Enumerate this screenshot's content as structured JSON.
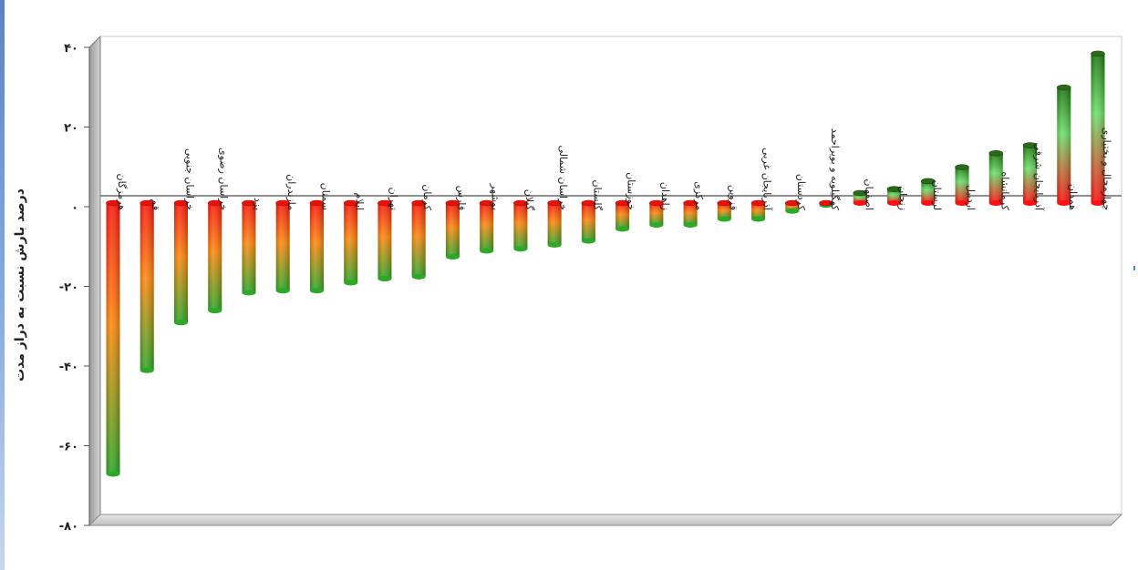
{
  "chart_data": {
    "type": "bar",
    "ylabel": "درصد بارش نسبت به دراز مدت",
    "ylim": [
      -80,
      40
    ],
    "yticks": [
      40,
      20,
      0,
      -20,
      -40,
      -60,
      -80
    ],
    "ytick_labels": [
      "۴۰",
      "۲۰",
      "۰",
      "-۲۰",
      "-۴۰",
      "-۶۰",
      "-۸۰"
    ],
    "grid": false,
    "legend": "none",
    "categories": [
      "هرمزگان",
      "قم",
      "خراسان جنوبی",
      "خراسان رضوی",
      "یزد",
      "مازندران",
      "سمنان",
      "ایلام",
      "تهران",
      "کرمان",
      "فارس",
      "بوشهر",
      "گیلان",
      "خراسان شمالی",
      "گلستان",
      "خوزستان",
      "زاهدان",
      "مرکزی",
      "قزوین",
      "آذربایجان غربی",
      "کردستان",
      "کهگیلویه و بویراحمد",
      "اصفهان",
      "زنجان",
      "لرستان",
      "اردبیل",
      "کرمانشاه",
      "آذربایجان شرقی",
      "همدان",
      "چهارمحال و بختیاری"
    ],
    "values": [
      -68,
      -42,
      -30,
      -27,
      -22.5,
      -22,
      -22,
      -20,
      -19,
      -18.5,
      -13.5,
      -12,
      -11.5,
      -10.5,
      -9.5,
      -6.5,
      -5.5,
      -5.5,
      -4,
      -4,
      -2,
      -0.5,
      2.5,
      3.5,
      5.5,
      9,
      12.5,
      14.5,
      29,
      37.5
    ],
    "colors": {
      "neg_top": "#ff1a10",
      "neg_mid": "#ff8a10",
      "neg_bottom": "#2fa82a",
      "pos_top": "#1e7a10",
      "pos_mid": "#6ee06a",
      "pos_bottom": "#ff1010"
    }
  }
}
